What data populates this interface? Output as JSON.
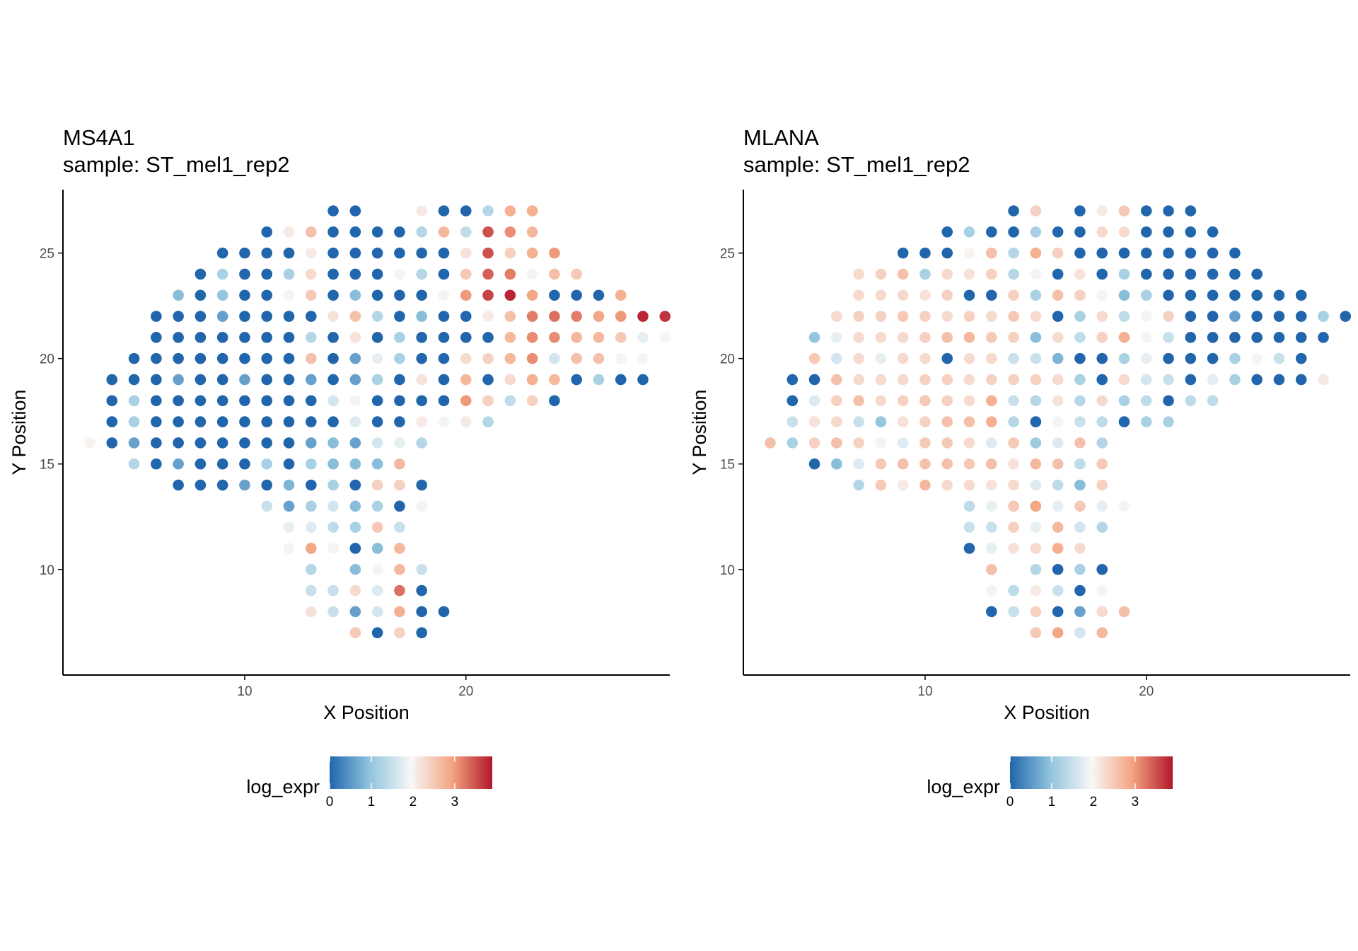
{
  "colors": {
    "low": "#2166AC",
    "low_mid": "#92C5DE",
    "mid": "#F7F7F7",
    "high_mid": "#F4A582",
    "high": "#B2182B",
    "axis": "#000000",
    "tick_text": "#4d4d4d"
  },
  "chart_data": [
    {
      "type": "scatter",
      "title": "MS4A1",
      "subtitle": "sample: ST_mel1_rep2",
      "xlabel": "X Position",
      "ylabel": "Y Position",
      "xticks": [
        10,
        20
      ],
      "yticks": [
        10,
        15,
        20,
        25
      ],
      "xlim": [
        3,
        28
      ],
      "ylim": [
        6,
        27
      ],
      "grid": false,
      "legend": {
        "title": "log_expr",
        "position": "bottom",
        "range": [
          0,
          3.9
        ],
        "ticks": [
          0,
          1,
          2,
          3
        ]
      },
      "rows": [
        {
          "y": 27,
          "x0": 14,
          "values": [
            0,
            0,
            null,
            null,
            2.1,
            0,
            0,
            1.3,
            2.8,
            2.8
          ]
        },
        {
          "y": 26,
          "x0": 11,
          "values": [
            0,
            2.1,
            2.6,
            0,
            0,
            0,
            0,
            1.3,
            2.7,
            1.4,
            3.5,
            3.1,
            2.7
          ]
        },
        {
          "y": 25,
          "x0": 9,
          "values": [
            0,
            0,
            0,
            0,
            2.1,
            0,
            0,
            0,
            0,
            0,
            0,
            2.2,
            3.5,
            2.4,
            2.8,
            3.0
          ]
        },
        {
          "y": 24,
          "x0": 8,
          "values": [
            0,
            1.2,
            0,
            0,
            1.2,
            2.3,
            0,
            0,
            0,
            1.9,
            1.3,
            0,
            2.5,
            3.4,
            3.2,
            2.0,
            2.6,
            2.5
          ]
        },
        {
          "y": 23,
          "x0": 7,
          "values": [
            0.9,
            0,
            1.0,
            0,
            0,
            2.0,
            2.5,
            0,
            0.9,
            0,
            0,
            0,
            1.9,
            3.0,
            3.6,
            3.8,
            2.9,
            0,
            0,
            0,
            2.8
          ]
        },
        {
          "y": 22,
          "x0": 6,
          "values": [
            0,
            0,
            0,
            0.6,
            0,
            0,
            0,
            0,
            2.2,
            2.6,
            1.3,
            0,
            0.9,
            0,
            0,
            2.1,
            2.6,
            3.2,
            3.3,
            3.2,
            2.9,
            3.0,
            3.8,
            3.7
          ]
        },
        {
          "y": 21,
          "x0": 6,
          "values": [
            0,
            0,
            0,
            0,
            0,
            0,
            0,
            1.3,
            0,
            2.2,
            0,
            1.2,
            0,
            0,
            0,
            0,
            2.7,
            3.1,
            3.1,
            2.7,
            2.7,
            2.5,
            1.8,
            2.0
          ]
        },
        {
          "y": 20,
          "x0": 5,
          "values": [
            0,
            0,
            0,
            0,
            0,
            0,
            0,
            0,
            2.6,
            0,
            0.6,
            1.8,
            1.2,
            0,
            0,
            2.3,
            2.4,
            2.7,
            3.1,
            1.6,
            2.6,
            2.6,
            1.9,
            2.0
          ]
        },
        {
          "y": 19,
          "x0": 4,
          "values": [
            0,
            0,
            0,
            0.6,
            0,
            0,
            0.6,
            0,
            0,
            0.6,
            0,
            0.6,
            1.2,
            0,
            2.2,
            0,
            2.7,
            0,
            2.3,
            2.8,
            2.7,
            0,
            1.2,
            0,
            0
          ]
        },
        {
          "y": 18,
          "x0": 4,
          "values": [
            0,
            1.2,
            0,
            0,
            0,
            0,
            0,
            0,
            0,
            0,
            1.6,
            2.0,
            0,
            0,
            0,
            0,
            3.0,
            2.4,
            1.4,
            2.4,
            0
          ]
        },
        {
          "y": 17,
          "x0": 4,
          "values": [
            0,
            1.2,
            0,
            0,
            0,
            0,
            0,
            0,
            0,
            0,
            0,
            1.7,
            0,
            0,
            2.1,
            1.9,
            2.1,
            1.3
          ]
        },
        {
          "y": 16,
          "x0": 3,
          "values": [
            2.0,
            0,
            0.6,
            0,
            0,
            0,
            0,
            0,
            0,
            0,
            0.6,
            0.9,
            0.6,
            1.6,
            1.8,
            1.3
          ]
        },
        {
          "y": 15,
          "x0": 5,
          "values": [
            1.3,
            0,
            0.6,
            0,
            0,
            0,
            1.2,
            0,
            1.2,
            0.9,
            0.9,
            0.9,
            2.7
          ]
        },
        {
          "y": 14,
          "x0": 7,
          "values": [
            0,
            0,
            0,
            0.6,
            0,
            0.8,
            0,
            1.2,
            0,
            2.4,
            2.4,
            0
          ]
        },
        {
          "y": 13,
          "x0": 11,
          "values": [
            1.5,
            0.6,
            1.2,
            1.6,
            0.9,
            1.2,
            0,
            1.9
          ]
        },
        {
          "y": 12,
          "x0": 12,
          "values": [
            1.8,
            1.7,
            1.4,
            1.2,
            2.5,
            1.5
          ]
        },
        {
          "y": 11,
          "x0": 12,
          "values": [
            1.9,
            2.9,
            2.0,
            0,
            0.9,
            2.7
          ]
        },
        {
          "y": 10,
          "x0": 13,
          "values": [
            1.3,
            null,
            0.9,
            2.0,
            2.7,
            1.5
          ]
        },
        {
          "y": 9,
          "x0": 13,
          "values": [
            1.5,
            1.5,
            2.3,
            1.7,
            3.3,
            0
          ]
        },
        {
          "y": 8,
          "x0": 13,
          "values": [
            2.2,
            1.5,
            0.6,
            1.6,
            2.8,
            0,
            0
          ]
        },
        {
          "y": 7,
          "x0": 15,
          "values": [
            2.5,
            0,
            2.4,
            0
          ]
        }
      ]
    },
    {
      "type": "scatter",
      "title": "MLANA",
      "subtitle": "sample: ST_mel1_rep2",
      "xlabel": "X Position",
      "ylabel": "Y Position",
      "xticks": [
        10,
        20
      ],
      "yticks": [
        10,
        15,
        20,
        25
      ],
      "xlim": [
        3,
        28
      ],
      "ylim": [
        6,
        27
      ],
      "grid": false,
      "legend": {
        "title": "log_expr",
        "position": "bottom",
        "range": [
          0,
          3.9
        ],
        "ticks": [
          0,
          1,
          2,
          3
        ]
      },
      "rows": [
        {
          "y": 27,
          "x0": 14,
          "values": [
            0,
            2.4,
            null,
            0,
            2.1,
            2.5,
            0,
            0,
            0
          ]
        },
        {
          "y": 26,
          "x0": 11,
          "values": [
            0,
            1.2,
            0,
            0,
            1.2,
            0,
            0,
            2.3,
            2.3,
            0,
            0,
            0,
            0
          ]
        },
        {
          "y": 25,
          "x0": 9,
          "values": [
            0,
            0,
            0,
            2.0,
            2.6,
            1.3,
            2.8,
            2.4,
            0,
            0,
            0,
            0,
            0,
            0,
            0,
            0
          ]
        },
        {
          "y": 24,
          "x0": 7,
          "values": [
            2.3,
            2.4,
            2.6,
            1.2,
            2.3,
            2.2,
            2.4,
            1.3,
            2.0,
            0,
            2.2,
            0,
            1.2,
            0,
            0,
            0,
            0,
            0,
            0
          ]
        },
        {
          "y": 23,
          "x0": 7,
          "values": [
            2.3,
            2.3,
            2.3,
            2.2,
            2.4,
            0,
            0,
            2.4,
            1.2,
            2.6,
            2.4,
            1.9,
            0.9,
            1.2,
            0,
            0,
            0,
            0,
            0,
            0,
            0
          ]
        },
        {
          "y": 22,
          "x0": 6,
          "values": [
            2.3,
            2.4,
            2.4,
            2.5,
            2.4,
            2.3,
            2.4,
            2.3,
            2.5,
            2.3,
            0,
            1.2,
            2.3,
            1.4,
            1.9,
            2.4,
            0,
            0,
            0.6,
            0,
            0,
            0,
            1.2,
            0
          ]
        },
        {
          "y": 21,
          "x0": 5,
          "values": [
            1.0,
            1.8,
            2.3,
            2.3,
            2.3,
            2.4,
            2.6,
            2.7,
            2.5,
            2.4,
            0.9,
            2.3,
            1.4,
            2.4,
            2.8,
            1.9,
            1.5,
            0,
            0,
            0,
            0,
            0,
            0,
            0
          ]
        },
        {
          "y": 20,
          "x0": 5,
          "values": [
            2.5,
            1.6,
            2.3,
            1.8,
            2.3,
            2.3,
            0,
            2.3,
            2.3,
            1.5,
            1.5,
            0.8,
            0,
            0,
            1.2,
            1.8,
            0,
            0,
            0,
            1.2,
            2.0,
            1.5,
            0
          ]
        },
        {
          "y": 19,
          "x0": 4,
          "values": [
            0,
            0,
            2.6,
            2.3,
            2.3,
            2.3,
            2.4,
            2.4,
            2.3,
            2.4,
            2.4,
            2.4,
            2.3,
            1.2,
            0,
            2.3,
            1.6,
            1.5,
            0,
            1.8,
            1.2,
            0,
            0,
            0,
            2.1
          ]
        },
        {
          "y": 18,
          "x0": 4,
          "values": [
            0,
            1.7,
            2.4,
            2.6,
            2.3,
            2.4,
            2.5,
            2.4,
            2.3,
            2.8,
            1.5,
            1.3,
            2.2,
            1.3,
            2.3,
            1.2,
            1.4,
            0,
            1.4,
            1.4
          ]
        },
        {
          "y": 17,
          "x0": 4,
          "values": [
            1.5,
            2.2,
            2.3,
            1.5,
            1.0,
            2.2,
            2.4,
            2.6,
            2.6,
            2.8,
            1.3,
            0,
            2.0,
            1.5,
            1.4,
            0,
            1.2,
            1.2
          ]
        },
        {
          "y": 16,
          "x0": 3,
          "values": [
            2.6,
            1.2,
            2.4,
            2.6,
            2.4,
            2.0,
            1.7,
            2.5,
            2.5,
            2.3,
            1.7,
            2.5,
            1.1,
            1.7,
            2.6,
            1.3
          ]
        },
        {
          "y": 15,
          "x0": 5,
          "values": [
            0,
            0.9,
            1.7,
            2.5,
            2.6,
            2.6,
            2.6,
            2.5,
            2.6,
            2.2,
            2.7,
            2.6,
            1.4,
            2.5
          ]
        },
        {
          "y": 14,
          "x0": 7,
          "values": [
            1.3,
            2.5,
            2.1,
            2.7,
            2.3,
            2.3,
            2.2,
            2.3,
            1.7,
            1.4,
            0.9,
            2.4
          ]
        },
        {
          "y": 13,
          "x0": 12,
          "values": [
            1.4,
            1.8,
            2.5,
            2.9,
            1.8,
            2.5,
            1.8,
            1.9
          ]
        },
        {
          "y": 12,
          "x0": 12,
          "values": [
            1.5,
            1.5,
            2.4,
            1.8,
            2.7,
            1.6,
            1.3
          ]
        },
        {
          "y": 11,
          "x0": 12,
          "values": [
            0,
            1.8,
            2.2,
            2.3,
            2.8,
            2.3
          ]
        },
        {
          "y": 10,
          "x0": 13,
          "values": [
            2.6,
            null,
            1.3,
            0,
            1.2,
            0
          ]
        },
        {
          "y": 9,
          "x0": 13,
          "values": [
            1.9,
            1.4,
            2.1,
            1.5,
            0,
            1.9
          ]
        },
        {
          "y": 8,
          "x0": 13,
          "values": [
            0,
            1.5,
            2.4,
            0,
            0.6,
            2.3,
            2.6
          ]
        },
        {
          "y": 7,
          "x0": 15,
          "values": [
            2.5,
            2.9,
            1.6,
            2.7
          ]
        }
      ]
    }
  ]
}
